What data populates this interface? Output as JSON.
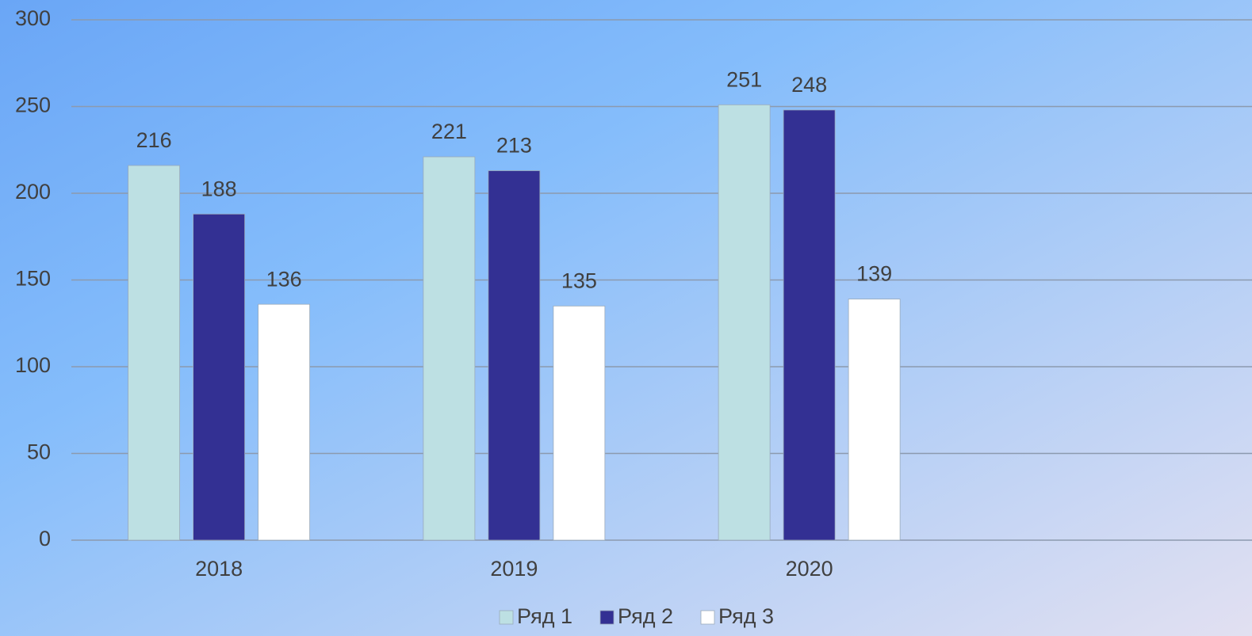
{
  "chart_data": {
    "type": "bar",
    "categories": [
      "2018",
      "2019",
      "2020",
      null
    ],
    "series": [
      {
        "name": "Ряд 1",
        "color": "#bde0e3",
        "values": [
          216,
          221,
          251,
          null
        ]
      },
      {
        "name": "Ряд 2",
        "color": "#333093",
        "values": [
          188,
          213,
          248,
          null
        ]
      },
      {
        "name": "Ряд 3",
        "color": "#ffffff",
        "values": [
          136,
          135,
          139,
          null
        ]
      }
    ],
    "ylim": [
      0,
      300
    ],
    "yticks": [
      0,
      50,
      100,
      150,
      200,
      250,
      300
    ],
    "grid": true,
    "legend": "bottom"
  }
}
